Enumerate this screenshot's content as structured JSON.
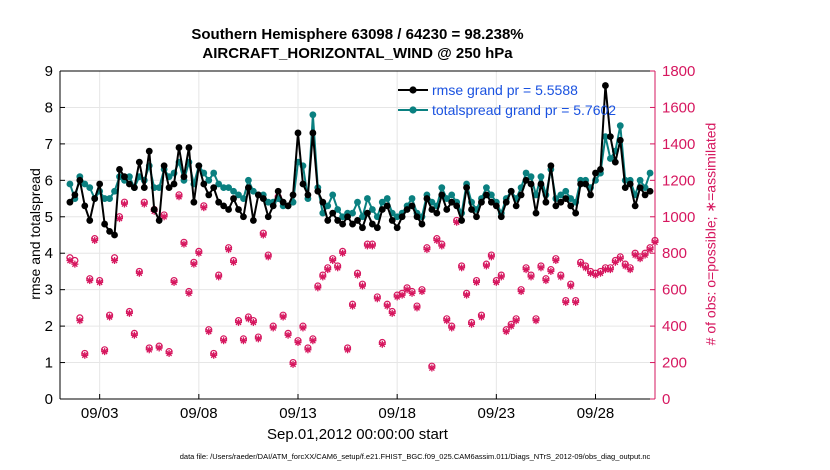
{
  "chart_data": {
    "type": "line",
    "title": "Southern Hemisphere 63098 / 64230 = 98.238%",
    "subtitle": "AIRCRAFT_HORIZONTAL_WIND @ 250 hPa",
    "xlabel": "Sep.01,2012 00:00:00 start",
    "ylabel": "rmse and totalspread",
    "ylabel_right": "# of obs: o=possible; ∗=assimilated",
    "footer": "data file: /Users/raeder/DAI/ATM_forcXX/CAM6_setup/f.e21.FHIST_BGC.f09_025.CAM6assim.011/Diags_NTrS_2012-09/obs_diag_output.nc",
    "xlim": [
      1,
      31
    ],
    "ylim": [
      0,
      9
    ],
    "ylim_right": [
      0,
      1800
    ],
    "xticks": [
      3,
      8,
      13,
      18,
      23,
      28
    ],
    "xtick_labels": [
      "09/03",
      "09/08",
      "09/13",
      "09/18",
      "09/23",
      "09/28"
    ],
    "yticks": [
      0,
      1,
      2,
      3,
      4,
      5,
      6,
      7,
      8,
      9
    ],
    "yticks_right": [
      0,
      200,
      400,
      600,
      800,
      1000,
      1200,
      1400,
      1600,
      1800
    ],
    "legend_position": "top-right",
    "colors": {
      "rmse": "#000000",
      "spread": "#0a8080",
      "obs": "#d6175f",
      "grid": "#e6e6e6"
    },
    "series": [
      {
        "name": "rmse grand pr = 5.5588",
        "axis": "left",
        "x": [
          1.5,
          1.75,
          2.0,
          2.25,
          2.5,
          2.75,
          3.0,
          3.25,
          3.5,
          3.75,
          4.0,
          4.25,
          4.5,
          4.75,
          5.0,
          5.25,
          5.5,
          5.75,
          6.0,
          6.25,
          6.5,
          6.75,
          7.0,
          7.25,
          7.5,
          7.75,
          8.0,
          8.25,
          8.5,
          8.75,
          9.0,
          9.25,
          9.5,
          9.75,
          10.0,
          10.25,
          10.5,
          10.75,
          11.0,
          11.25,
          11.5,
          11.75,
          12.0,
          12.25,
          12.5,
          12.75,
          13.0,
          13.25,
          13.5,
          13.75,
          14.0,
          14.25,
          14.5,
          14.75,
          15.0,
          15.25,
          15.5,
          15.75,
          16.0,
          16.25,
          16.5,
          16.75,
          17.0,
          17.25,
          17.5,
          17.75,
          18.0,
          18.25,
          18.5,
          18.75,
          19.0,
          19.25,
          19.5,
          19.75,
          20.0,
          20.25,
          20.5,
          20.75,
          21.0,
          21.25,
          21.5,
          21.75,
          22.0,
          22.25,
          22.5,
          22.75,
          23.0,
          23.25,
          23.5,
          23.75,
          24.0,
          24.25,
          24.5,
          24.75,
          25.0,
          25.25,
          25.5,
          25.75,
          26.0,
          26.25,
          26.5,
          26.75,
          27.0,
          27.25,
          27.5,
          27.75,
          28.0,
          28.25,
          28.5,
          28.75,
          29.0,
          29.25,
          29.5,
          29.75,
          30.0,
          30.25,
          30.5,
          30.75
        ],
        "values": [
          5.4,
          5.6,
          6.0,
          5.3,
          4.9,
          5.5,
          5.9,
          4.8,
          4.6,
          4.5,
          6.3,
          6.1,
          5.9,
          5.8,
          6.5,
          5.8,
          6.8,
          5.2,
          4.9,
          6.4,
          5.8,
          5.9,
          6.9,
          6.1,
          6.9,
          5.4,
          6.4,
          5.9,
          5.6,
          5.8,
          5.4,
          5.3,
          5.2,
          5.5,
          5.2,
          5.0,
          5.8,
          4.9,
          5.6,
          5.5,
          5.0,
          5.3,
          5.7,
          5.4,
          5.3,
          5.6,
          7.3,
          5.9,
          5.6,
          7.3,
          5.7,
          5.4,
          4.9,
          5.1,
          4.9,
          4.8,
          5.0,
          4.8,
          4.9,
          4.7,
          5.1,
          4.8,
          4.7,
          5.2,
          5.3,
          4.9,
          4.7,
          5.0,
          5.2,
          5.3,
          5.0,
          4.8,
          5.5,
          5.2,
          5.1,
          5.6,
          5.2,
          5.4,
          5.3,
          4.9,
          5.8,
          5.2,
          5.0,
          5.4,
          5.6,
          5.4,
          5.3,
          5.0,
          5.4,
          5.7,
          5.3,
          5.6,
          6.0,
          5.9,
          5.1,
          5.9,
          5.4,
          6.4,
          5.3,
          5.4,
          5.5,
          5.3,
          5.1,
          5.9,
          5.9,
          5.6,
          6.2,
          6.3,
          8.6,
          7.2,
          6.5,
          7.1,
          5.8,
          5.9,
          5.3,
          5.8,
          5.6,
          5.7
        ]
      },
      {
        "name": "totalspread grand pr = 5.7602",
        "axis": "left",
        "x": [
          1.5,
          1.75,
          2.0,
          2.25,
          2.5,
          2.75,
          3.0,
          3.25,
          3.5,
          3.75,
          4.0,
          4.25,
          4.5,
          4.75,
          5.0,
          5.25,
          5.5,
          5.75,
          6.0,
          6.25,
          6.5,
          6.75,
          7.0,
          7.25,
          7.5,
          7.75,
          8.0,
          8.25,
          8.5,
          8.75,
          9.0,
          9.25,
          9.5,
          9.75,
          10.0,
          10.25,
          10.5,
          10.75,
          11.0,
          11.25,
          11.5,
          11.75,
          12.0,
          12.25,
          12.5,
          12.75,
          13.0,
          13.25,
          13.5,
          13.75,
          14.0,
          14.25,
          14.5,
          14.75,
          15.0,
          15.25,
          15.5,
          15.75,
          16.0,
          16.25,
          16.5,
          16.75,
          17.0,
          17.25,
          17.5,
          17.75,
          18.0,
          18.25,
          18.5,
          18.75,
          19.0,
          19.25,
          19.5,
          19.75,
          20.0,
          20.25,
          20.5,
          20.75,
          21.0,
          21.25,
          21.5,
          21.75,
          22.0,
          22.25,
          22.5,
          22.75,
          23.0,
          23.25,
          23.5,
          23.75,
          24.0,
          24.25,
          24.5,
          24.75,
          25.0,
          25.25,
          25.5,
          25.75,
          26.0,
          26.25,
          26.5,
          26.75,
          27.0,
          27.25,
          27.5,
          27.75,
          28.0,
          28.25,
          28.5,
          28.75,
          29.0,
          29.25,
          29.5,
          29.75,
          30.0,
          30.25,
          30.5,
          30.75
        ],
        "values": [
          5.9,
          5.5,
          6.1,
          5.9,
          5.8,
          5.5,
          5.7,
          5.5,
          5.5,
          5.7,
          6.1,
          6.0,
          6.1,
          5.8,
          6.1,
          6.0,
          6.4,
          5.8,
          5.8,
          6.3,
          6.1,
          6.2,
          6.5,
          6.0,
          6.5,
          5.9,
          6.4,
          6.2,
          6.0,
          6.2,
          5.9,
          5.8,
          5.8,
          5.7,
          5.6,
          5.5,
          6.0,
          5.7,
          5.6,
          5.6,
          5.4,
          5.4,
          5.5,
          5.3,
          5.3,
          5.4,
          6.5,
          6.4,
          5.5,
          7.8,
          5.8,
          5.1,
          5.3,
          5.6,
          5.2,
          5.0,
          5.1,
          5.1,
          5.4,
          5.0,
          5.5,
          5.2,
          5.0,
          5.4,
          5.5,
          5.1,
          5.0,
          5.1,
          5.3,
          5.5,
          5.1,
          5.0,
          5.6,
          5.4,
          5.3,
          5.8,
          5.5,
          5.6,
          5.4,
          5.1,
          5.9,
          5.4,
          5.2,
          5.5,
          5.8,
          5.6,
          5.4,
          5.1,
          5.5,
          5.7,
          5.5,
          5.8,
          6.2,
          6.1,
          5.6,
          6.1,
          5.6,
          6.3,
          5.5,
          5.6,
          5.7,
          5.5,
          5.4,
          6.0,
          6.0,
          5.8,
          6.0,
          6.2,
          7.2,
          6.6,
          6.8,
          7.5,
          6.0,
          6.0,
          5.6,
          6.0,
          5.8,
          6.2
        ]
      }
    ],
    "obs_counts": {
      "axis": "right",
      "x": [
        1.5,
        1.75,
        2.0,
        2.25,
        2.5,
        2.75,
        3.0,
        3.25,
        3.5,
        3.75,
        4.0,
        4.25,
        4.5,
        4.75,
        5.0,
        5.25,
        5.5,
        5.75,
        6.0,
        6.25,
        6.5,
        6.75,
        7.0,
        7.25,
        7.5,
        7.75,
        8.0,
        8.25,
        8.5,
        8.75,
        9.0,
        9.25,
        9.5,
        9.75,
        10.0,
        10.25,
        10.5,
        10.75,
        11.0,
        11.25,
        11.5,
        11.75,
        12.0,
        12.25,
        12.5,
        12.75,
        13.0,
        13.25,
        13.5,
        13.75,
        14.0,
        14.25,
        14.5,
        14.75,
        15.0,
        15.25,
        15.5,
        15.75,
        16.0,
        16.25,
        16.5,
        16.75,
        17.0,
        17.25,
        17.5,
        17.75,
        18.0,
        18.25,
        18.5,
        18.75,
        19.0,
        19.25,
        19.5,
        19.75,
        20.0,
        20.25,
        20.5,
        20.75,
        21.0,
        21.25,
        21.5,
        21.75,
        22.0,
        22.25,
        22.5,
        22.75,
        23.0,
        23.25,
        23.5,
        23.75,
        24.0,
        24.25,
        24.5,
        24.75,
        25.0,
        25.25,
        25.5,
        25.75,
        26.0,
        26.25,
        26.5,
        26.75,
        27.0,
        27.25,
        27.5,
        27.75,
        28.0,
        28.25,
        28.5,
        28.75,
        29.0,
        29.25,
        29.5,
        29.75,
        30.0,
        30.25,
        30.5,
        30.75,
        31.0
      ],
      "possible": [
        775,
        760,
        445,
        250,
        660,
        880,
        650,
        270,
        460,
        775,
        1000,
        1080,
        480,
        360,
        700,
        1080,
        280,
        1040,
        290,
        1010,
        260,
        650,
        1120,
        860,
        590,
        750,
        810,
        1060,
        380,
        250,
        680,
        330,
        830,
        760,
        430,
        330,
        450,
        430,
        340,
        910,
        790,
        400,
        1110,
        460,
        360,
        200,
        320,
        400,
        280,
        330,
        620,
        680,
        720,
        770,
        730,
        810,
        280,
        520,
        690,
        630,
        850,
        850,
        560,
        310,
        520,
        480,
        570,
        580,
        610,
        590,
        510,
        600,
        830,
        180,
        880,
        850,
        440,
        400,
        980,
        730,
        580,
        420,
        650,
        460,
        740,
        790,
        650,
        680,
        380,
        410,
        440,
        600,
        720,
        680,
        440,
        730,
        660,
        710,
        770,
        680,
        540,
        630,
        540,
        750,
        730,
        700,
        690,
        700,
        720,
        720,
        760,
        780,
        740,
        720,
        800,
        780,
        800,
        830,
        870,
        930,
        980
      ],
      "assimilated": [
        760,
        740,
        430,
        240,
        650,
        870,
        640,
        260,
        450,
        760,
        990,
        1070,
        470,
        350,
        690,
        1070,
        270,
        1030,
        280,
        1000,
        250,
        640,
        1110,
        850,
        580,
        740,
        800,
        1050,
        370,
        240,
        670,
        320,
        820,
        750,
        420,
        320,
        440,
        420,
        330,
        900,
        780,
        390,
        1100,
        450,
        350,
        190,
        310,
        390,
        270,
        320,
        610,
        670,
        710,
        760,
        720,
        800,
        270,
        510,
        680,
        620,
        840,
        840,
        550,
        300,
        510,
        470,
        560,
        570,
        600,
        580,
        500,
        590,
        820,
        170,
        870,
        840,
        430,
        390,
        970,
        720,
        570,
        410,
        640,
        450,
        730,
        780,
        640,
        670,
        370,
        400,
        430,
        590,
        710,
        670,
        430,
        720,
        650,
        700,
        760,
        670,
        530,
        620,
        530,
        740,
        720,
        690,
        680,
        690,
        710,
        710,
        750,
        770,
        730,
        710,
        790,
        770,
        790,
        820,
        860,
        920,
        970
      ]
    }
  }
}
